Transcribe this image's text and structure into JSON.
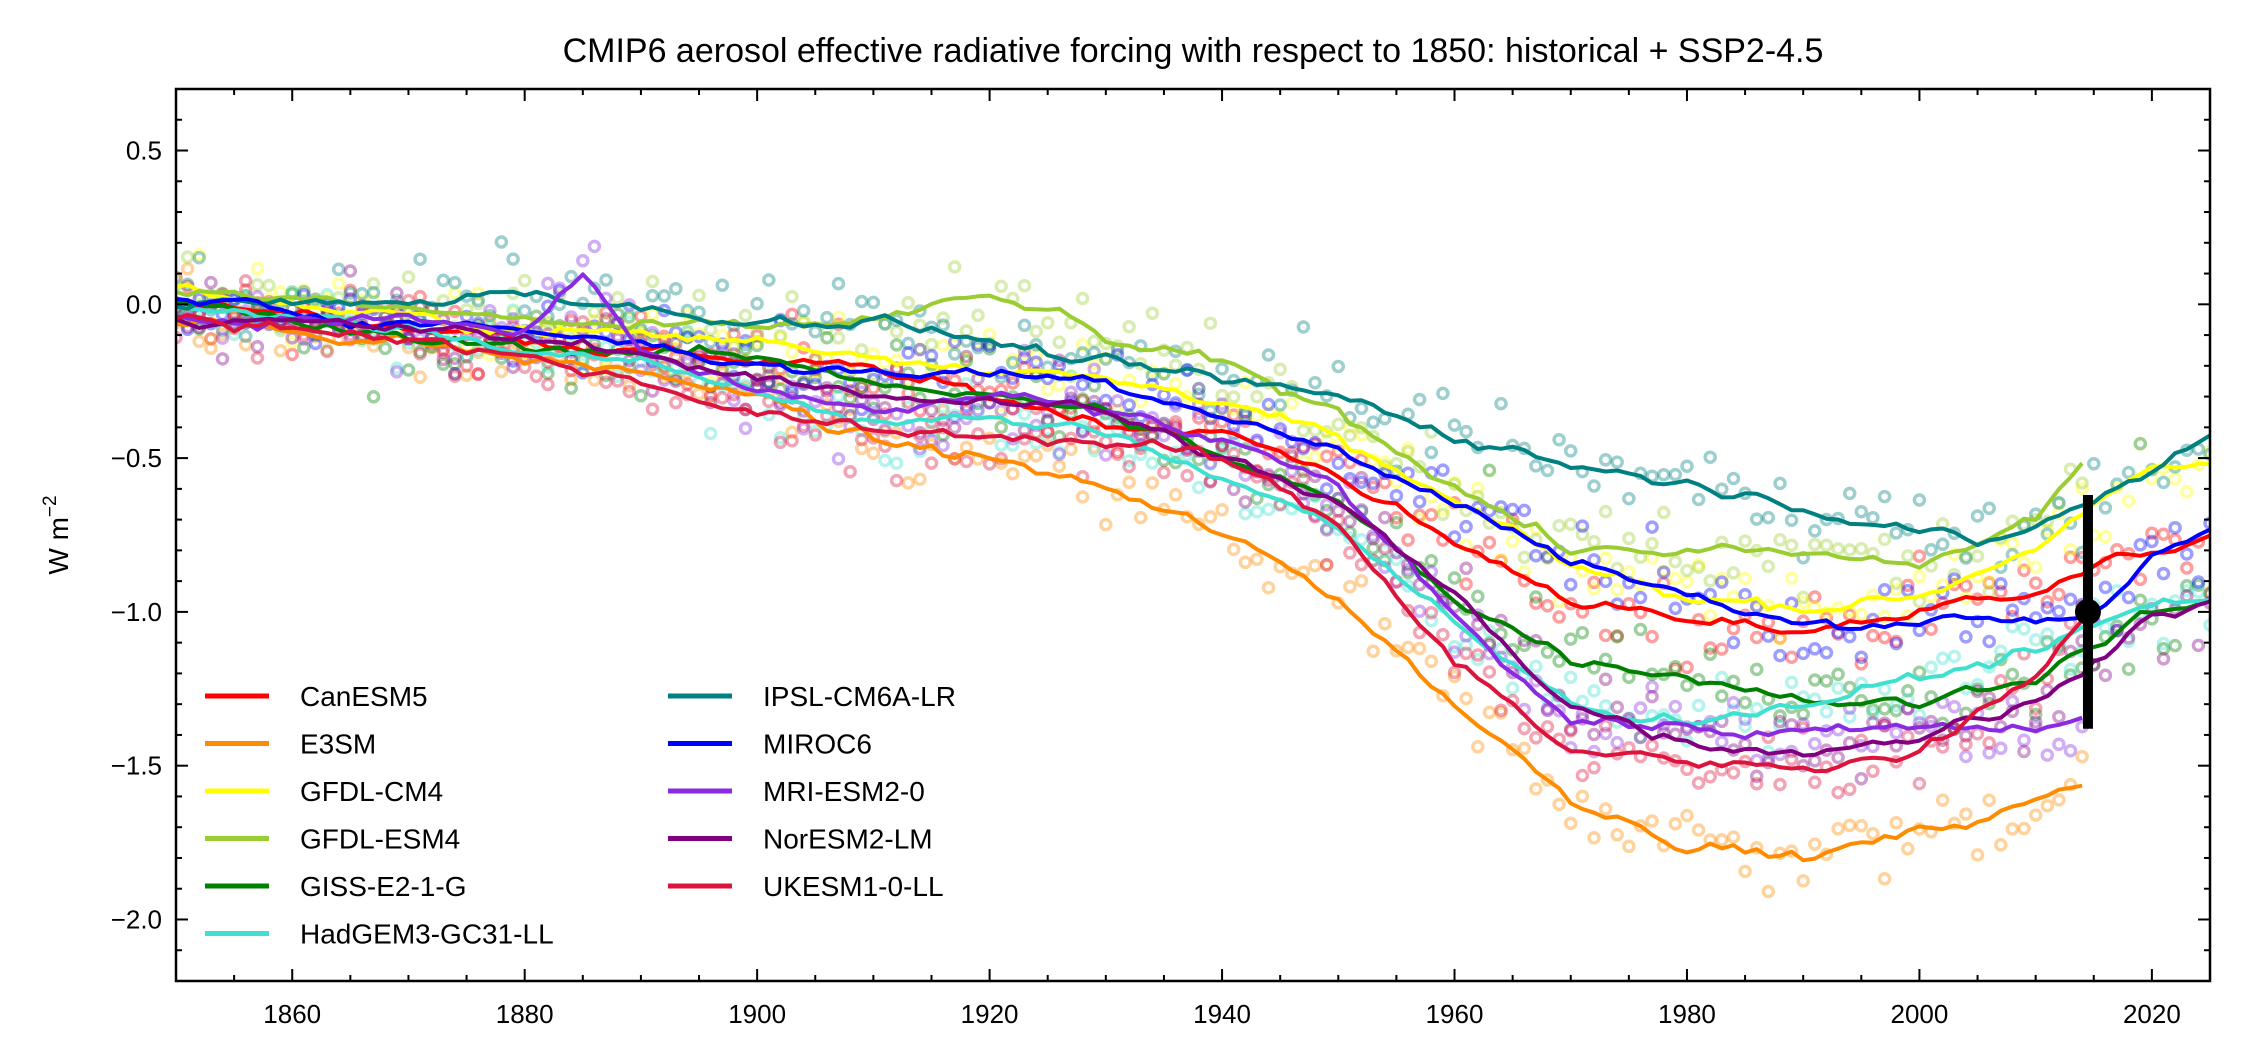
{
  "chart_data": {
    "type": "line",
    "title": "CMIP6 aerosol effective radiative forcing with respect to 1850: historical + SSP2-4.5",
    "ylabel": "W m",
    "ylabel_sup": "−2",
    "xlim": [
      1850,
      2025
    ],
    "ylim": [
      -2.2,
      0.7
    ],
    "x_ticks": [
      1860,
      1880,
      1900,
      1920,
      1940,
      1960,
      1980,
      2000,
      2020
    ],
    "x_tick_labels": [
      "1860",
      "1880",
      "1900",
      "1920",
      "1940",
      "1960",
      "1980",
      "2000",
      "2020"
    ],
    "y_ticks": [
      -2.0,
      -1.5,
      -1.0,
      -0.5,
      0.0,
      0.5
    ],
    "y_tick_labels": [
      "−2.0",
      "−1.5",
      "−1.0",
      "−0.5",
      "0.0",
      "0.5"
    ],
    "grid": false,
    "legend_position": "lower-left",
    "series": [
      {
        "name": "CanESM5",
        "color": "#ff0000",
        "end": 2025,
        "k": [
          [
            1850,
            0.0
          ],
          [
            1870,
            -0.07
          ],
          [
            1890,
            -0.15
          ],
          [
            1900,
            -0.18
          ],
          [
            1910,
            -0.22
          ],
          [
            1920,
            -0.3
          ],
          [
            1930,
            -0.38
          ],
          [
            1940,
            -0.42
          ],
          [
            1950,
            -0.55
          ],
          [
            1960,
            -0.78
          ],
          [
            1970,
            -0.95
          ],
          [
            1980,
            -1.04
          ],
          [
            1990,
            -1.06
          ],
          [
            2000,
            -1.0
          ],
          [
            2010,
            -0.92
          ],
          [
            2020,
            -0.8
          ],
          [
            2025,
            -0.77
          ]
        ]
      },
      {
        "name": "E3SM",
        "color": "#ff8c00",
        "end": 2014,
        "k": [
          [
            1850,
            -0.05
          ],
          [
            1870,
            -0.12
          ],
          [
            1880,
            -0.18
          ],
          [
            1890,
            -0.22
          ],
          [
            1900,
            -0.3
          ],
          [
            1910,
            -0.45
          ],
          [
            1920,
            -0.5
          ],
          [
            1930,
            -0.6
          ],
          [
            1940,
            -0.75
          ],
          [
            1950,
            -0.95
          ],
          [
            1960,
            -1.3
          ],
          [
            1970,
            -1.6
          ],
          [
            1980,
            -1.75
          ],
          [
            1990,
            -1.8
          ],
          [
            2000,
            -1.72
          ],
          [
            2010,
            -1.62
          ],
          [
            2014,
            -1.56
          ]
        ]
      },
      {
        "name": "GFDL-CM4",
        "color": "#ffff00",
        "end": 2025,
        "k": [
          [
            1850,
            0.05
          ],
          [
            1870,
            -0.05
          ],
          [
            1890,
            -0.1
          ],
          [
            1900,
            -0.12
          ],
          [
            1920,
            -0.2
          ],
          [
            1930,
            -0.25
          ],
          [
            1940,
            -0.3
          ],
          [
            1950,
            -0.45
          ],
          [
            1960,
            -0.65
          ],
          [
            1970,
            -0.85
          ],
          [
            1980,
            -0.95
          ],
          [
            1990,
            -0.98
          ],
          [
            2000,
            -0.95
          ],
          [
            2010,
            -0.78
          ],
          [
            2020,
            -0.55
          ],
          [
            2025,
            -0.52
          ]
        ]
      },
      {
        "name": "GFDL-ESM4",
        "color": "#9acd32",
        "end": 2014,
        "k": [
          [
            1850,
            0.05
          ],
          [
            1870,
            -0.02
          ],
          [
            1890,
            -0.08
          ],
          [
            1900,
            -0.08
          ],
          [
            1910,
            -0.05
          ],
          [
            1920,
            0.02
          ],
          [
            1925,
            -0.02
          ],
          [
            1930,
            -0.12
          ],
          [
            1940,
            -0.2
          ],
          [
            1950,
            -0.35
          ],
          [
            1960,
            -0.58
          ],
          [
            1970,
            -0.8
          ],
          [
            1980,
            -0.8
          ],
          [
            1990,
            -0.82
          ],
          [
            2000,
            -0.85
          ],
          [
            2010,
            -0.7
          ],
          [
            2014,
            -0.52
          ]
        ]
      },
      {
        "name": "GISS-E2-1-G",
        "color": "#008000",
        "end": 2025,
        "k": [
          [
            1850,
            0.0
          ],
          [
            1870,
            -0.12
          ],
          [
            1890,
            -0.15
          ],
          [
            1900,
            -0.18
          ],
          [
            1920,
            -0.3
          ],
          [
            1930,
            -0.35
          ],
          [
            1940,
            -0.5
          ],
          [
            1950,
            -0.65
          ],
          [
            1960,
            -0.95
          ],
          [
            1970,
            -1.15
          ],
          [
            1980,
            -1.2
          ],
          [
            1990,
            -1.28
          ],
          [
            2000,
            -1.3
          ],
          [
            2010,
            -1.2
          ],
          [
            2020,
            -1.0
          ],
          [
            2025,
            -0.98
          ]
        ]
      },
      {
        "name": "HadGEM3-GC31-LL",
        "color": "#40e0d0",
        "end": 2025,
        "k": [
          [
            1850,
            0.0
          ],
          [
            1870,
            -0.08
          ],
          [
            1890,
            -0.2
          ],
          [
            1900,
            -0.28
          ],
          [
            1910,
            -0.38
          ],
          [
            1920,
            -0.38
          ],
          [
            1930,
            -0.42
          ],
          [
            1940,
            -0.55
          ],
          [
            1950,
            -0.72
          ],
          [
            1960,
            -1.05
          ],
          [
            1970,
            -1.3
          ],
          [
            1980,
            -1.35
          ],
          [
            1990,
            -1.3
          ],
          [
            2000,
            -1.22
          ],
          [
            2010,
            -1.12
          ],
          [
            2020,
            -0.98
          ],
          [
            2025,
            -0.95
          ]
        ]
      },
      {
        "name": "IPSL-CM6A-LR",
        "color": "#008080",
        "end": 2025,
        "k": [
          [
            1850,
            0.0
          ],
          [
            1870,
            0.0
          ],
          [
            1880,
            0.05
          ],
          [
            1890,
            -0.02
          ],
          [
            1900,
            -0.05
          ],
          [
            1910,
            -0.05
          ],
          [
            1920,
            -0.12
          ],
          [
            1930,
            -0.2
          ],
          [
            1940,
            -0.25
          ],
          [
            1950,
            -0.3
          ],
          [
            1960,
            -0.42
          ],
          [
            1970,
            -0.52
          ],
          [
            1980,
            -0.58
          ],
          [
            1990,
            -0.65
          ],
          [
            2000,
            -0.73
          ],
          [
            2005,
            -0.8
          ],
          [
            2010,
            -0.72
          ],
          [
            2020,
            -0.55
          ],
          [
            2025,
            -0.42
          ]
        ]
      },
      {
        "name": "MIROC6",
        "color": "#0000ff",
        "end": 2025,
        "k": [
          [
            1850,
            0.0
          ],
          [
            1870,
            -0.05
          ],
          [
            1890,
            -0.12
          ],
          [
            1900,
            -0.2
          ],
          [
            1910,
            -0.22
          ],
          [
            1920,
            -0.22
          ],
          [
            1930,
            -0.25
          ],
          [
            1940,
            -0.35
          ],
          [
            1950,
            -0.48
          ],
          [
            1960,
            -0.65
          ],
          [
            1970,
            -0.82
          ],
          [
            1980,
            -0.95
          ],
          [
            1990,
            -1.05
          ],
          [
            2000,
            -1.02
          ],
          [
            2010,
            -1.02
          ],
          [
            2015,
            -1.0
          ],
          [
            2020,
            -0.82
          ],
          [
            2025,
            -0.76
          ]
        ]
      },
      {
        "name": "MRI-ESM2-0",
        "color": "#8a2be2",
        "end": 2014,
        "k": [
          [
            1850,
            -0.05
          ],
          [
            1870,
            -0.05
          ],
          [
            1880,
            -0.1
          ],
          [
            1885,
            0.1
          ],
          [
            1890,
            -0.15
          ],
          [
            1900,
            -0.3
          ],
          [
            1910,
            -0.35
          ],
          [
            1920,
            -0.3
          ],
          [
            1930,
            -0.35
          ],
          [
            1940,
            -0.45
          ],
          [
            1950,
            -0.6
          ],
          [
            1960,
            -1.0
          ],
          [
            1970,
            -1.35
          ],
          [
            1980,
            -1.38
          ],
          [
            1990,
            -1.4
          ],
          [
            2000,
            -1.38
          ],
          [
            2010,
            -1.38
          ],
          [
            2014,
            -1.35
          ]
        ]
      },
      {
        "name": "NorESM2-LM",
        "color": "#800080",
        "end": 2025,
        "k": [
          [
            1850,
            -0.05
          ],
          [
            1870,
            -0.08
          ],
          [
            1890,
            -0.15
          ],
          [
            1900,
            -0.25
          ],
          [
            1910,
            -0.3
          ],
          [
            1920,
            -0.3
          ],
          [
            1930,
            -0.35
          ],
          [
            1940,
            -0.5
          ],
          [
            1950,
            -0.65
          ],
          [
            1960,
            -0.95
          ],
          [
            1970,
            -1.3
          ],
          [
            1980,
            -1.42
          ],
          [
            1990,
            -1.45
          ],
          [
            2000,
            -1.4
          ],
          [
            2010,
            -1.3
          ],
          [
            2020,
            -1.0
          ],
          [
            2025,
            -0.98
          ]
        ]
      },
      {
        "name": "UKESM1-0-LL",
        "color": "#dc143c",
        "end": 2014,
        "k": [
          [
            1850,
            -0.05
          ],
          [
            1870,
            -0.1
          ],
          [
            1890,
            -0.25
          ],
          [
            1900,
            -0.35
          ],
          [
            1910,
            -0.42
          ],
          [
            1920,
            -0.42
          ],
          [
            1930,
            -0.45
          ],
          [
            1940,
            -0.5
          ],
          [
            1950,
            -0.72
          ],
          [
            1960,
            -1.15
          ],
          [
            1970,
            -1.45
          ],
          [
            1980,
            -1.5
          ],
          [
            1990,
            -1.5
          ],
          [
            2000,
            -1.45
          ],
          [
            2010,
            -1.2
          ],
          [
            2014,
            -1.05
          ]
        ]
      }
    ],
    "error_bar": {
      "x": 2014.5,
      "y": -1.0,
      "low": -1.38,
      "high": -0.62,
      "color": "#000000"
    }
  }
}
